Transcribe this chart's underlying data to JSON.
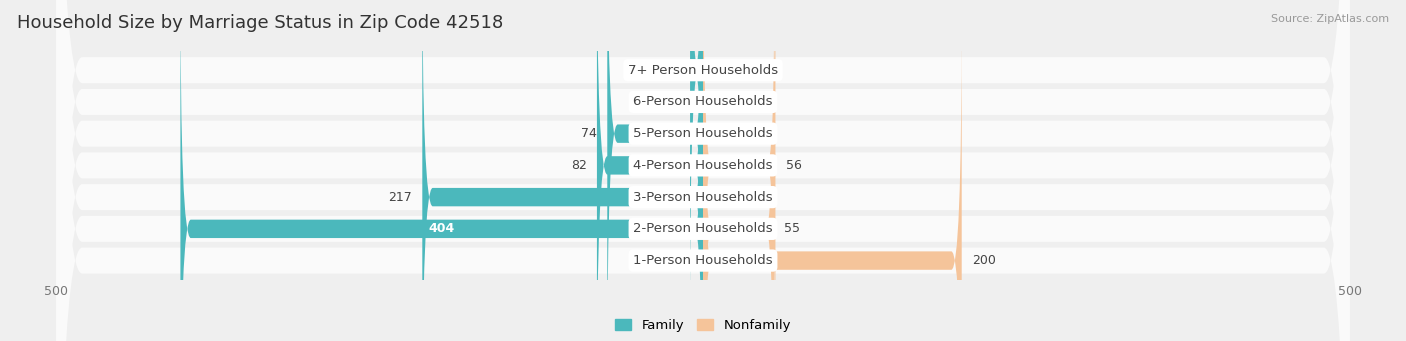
{
  "title": "Household Size by Marriage Status in Zip Code 42518",
  "source": "Source: ZipAtlas.com",
  "categories": [
    "7+ Person Households",
    "6-Person Households",
    "5-Person Households",
    "4-Person Households",
    "3-Person Households",
    "2-Person Households",
    "1-Person Households"
  ],
  "family_values": [
    10,
    0,
    74,
    82,
    217,
    404,
    0
  ],
  "nonfamily_values": [
    0,
    0,
    0,
    56,
    0,
    55,
    200
  ],
  "family_color": "#4BB8BC",
  "nonfamily_color": "#F5C49A",
  "family_label": "Family",
  "nonfamily_label": "Nonfamily",
  "xlim": 500,
  "bar_height": 0.58,
  "background_color": "#EFEFEF",
  "row_color": "#FAFAFA",
  "title_fontsize": 13,
  "label_fontsize": 9.5,
  "tick_fontsize": 9,
  "annotation_fontsize": 9
}
